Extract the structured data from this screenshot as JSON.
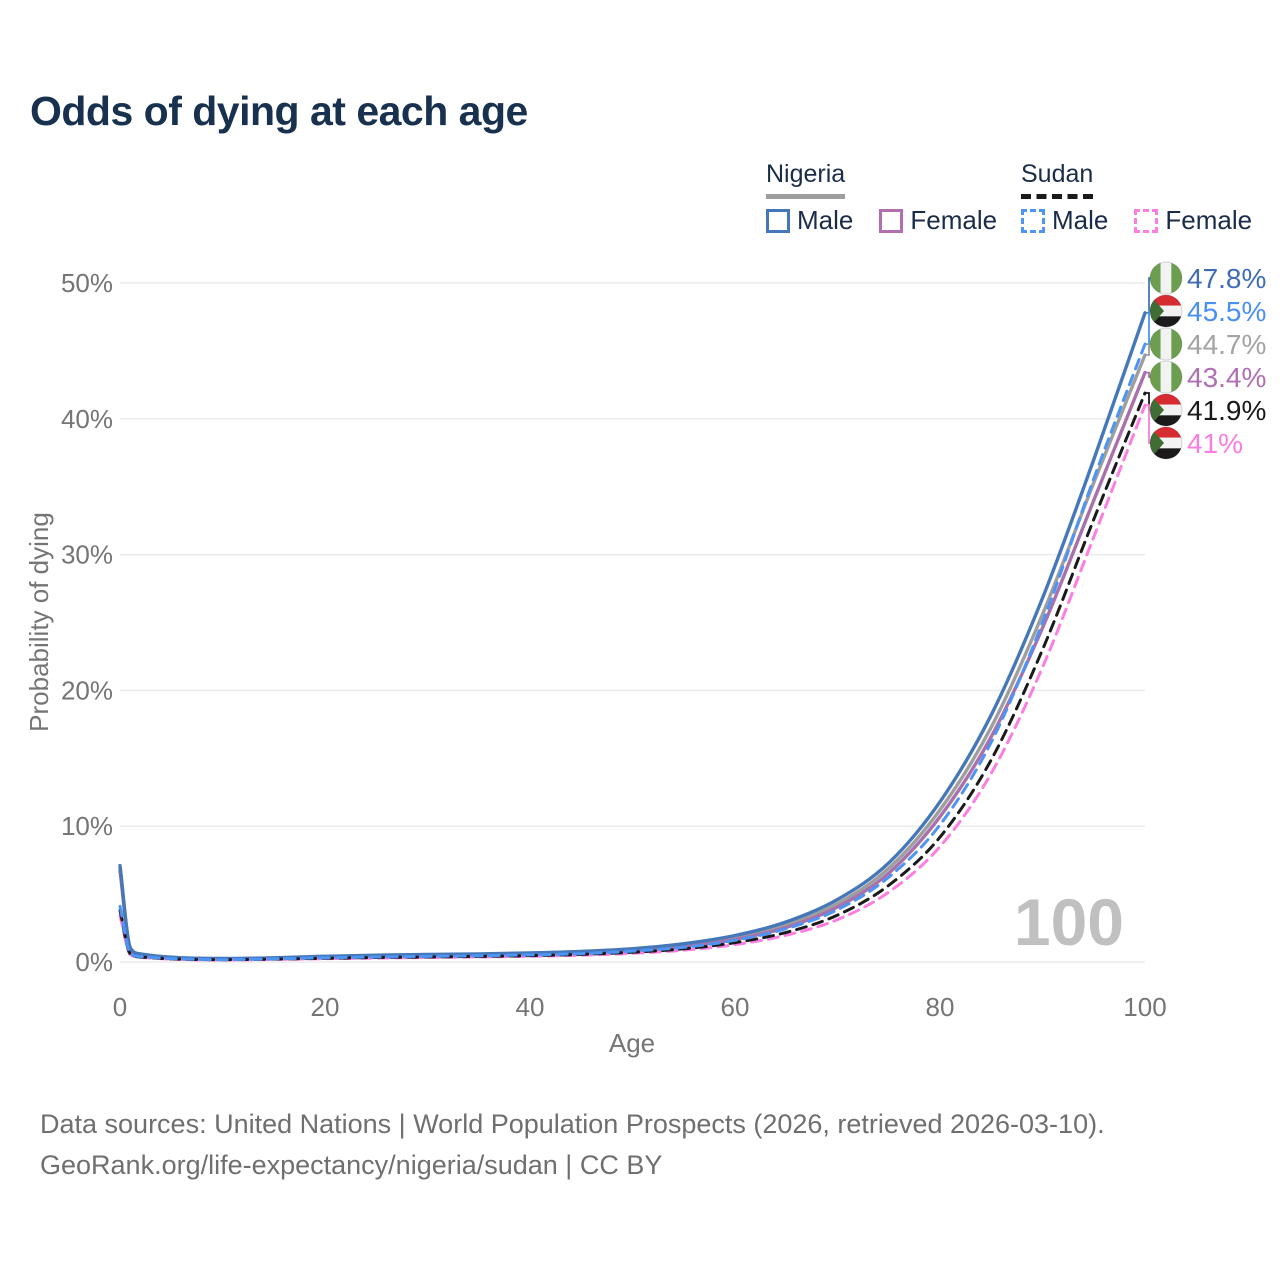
{
  "header": {
    "title": "Odds of dying at each age"
  },
  "legend": {
    "groups": [
      {
        "label": "Nigeria",
        "style": "solid",
        "underline_color": "#9e9e9e",
        "items": [
          {
            "label": "Male",
            "color": "#4678b9"
          },
          {
            "label": "Female",
            "color": "#b070b0"
          }
        ]
      },
      {
        "label": "Sudan",
        "style": "dashed",
        "underline_color": "#1a1a1a",
        "items": [
          {
            "label": "Male",
            "color": "#4d94f5"
          },
          {
            "label": "Female",
            "color": "#fb7ee0"
          }
        ]
      }
    ]
  },
  "chart_data": {
    "type": "line",
    "title": "Odds of dying at each age",
    "xlabel": "Age",
    "ylabel": "Probability of dying",
    "xlim": [
      0,
      100
    ],
    "ylim": [
      0,
      50
    ],
    "x_ticks": [
      0,
      20,
      40,
      60,
      80,
      100
    ],
    "y_ticks": [
      0,
      10,
      20,
      30,
      40,
      50
    ],
    "y_tick_suffix": "%",
    "grid": "horizontal",
    "grid_color": "#ebebeb",
    "tick_color": "#757575",
    "watermark": "100",
    "watermark_color": "#c0c0c0",
    "x": [
      0,
      1,
      2,
      5,
      10,
      15,
      20,
      25,
      30,
      35,
      40,
      45,
      50,
      55,
      60,
      65,
      70,
      75,
      80,
      85,
      90,
      95,
      100
    ],
    "series": [
      {
        "name": "Nigeria Male",
        "country": "nigeria",
        "sex": "male",
        "dash": false,
        "color": "#4678b9",
        "label_color": "#3f6cb5",
        "end_label": "47.8%",
        "values": [
          7.1,
          1.05,
          0.6,
          0.35,
          0.26,
          0.31,
          0.42,
          0.5,
          0.55,
          0.6,
          0.67,
          0.78,
          0.98,
          1.35,
          1.95,
          2.95,
          4.6,
          7.3,
          11.8,
          18.2,
          26.8,
          37.0,
          47.8
        ]
      },
      {
        "name": "Sudan Male",
        "country": "sudan",
        "sex": "male",
        "dash": true,
        "color": "#4d94f5",
        "label_color": "#4a90f0",
        "end_label": "45.5%",
        "values": [
          4.1,
          0.65,
          0.4,
          0.25,
          0.18,
          0.23,
          0.31,
          0.37,
          0.41,
          0.46,
          0.52,
          0.62,
          0.8,
          1.08,
          1.6,
          2.45,
          3.85,
          6.25,
          10.1,
          16.2,
          25.0,
          35.6,
          45.5
        ]
      },
      {
        "name": "Nigeria",
        "country": "nigeria",
        "sex": "all",
        "dash": false,
        "color": "#9e9e9e",
        "label_color": "#a3a3a3",
        "end_label": "44.7%",
        "values": [
          6.9,
          1.0,
          0.56,
          0.33,
          0.24,
          0.29,
          0.38,
          0.46,
          0.51,
          0.56,
          0.62,
          0.72,
          0.9,
          1.24,
          1.8,
          2.74,
          4.3,
          6.9,
          11.2,
          17.3,
          25.6,
          35.3,
          44.7
        ]
      },
      {
        "name": "Nigeria Female",
        "country": "nigeria",
        "sex": "female",
        "dash": false,
        "color": "#a871ab",
        "label_color": "#b06fb3",
        "end_label": "43.4%",
        "values": [
          6.7,
          0.95,
          0.52,
          0.31,
          0.22,
          0.27,
          0.34,
          0.42,
          0.47,
          0.52,
          0.58,
          0.67,
          0.83,
          1.14,
          1.66,
          2.55,
          4.05,
          6.55,
          10.7,
          16.6,
          24.6,
          34.0,
          43.4
        ]
      },
      {
        "name": "Sudan",
        "country": "sudan",
        "sex": "all",
        "dash": true,
        "color": "#1a1a1a",
        "label_color": "#1a1a1a",
        "end_label": "41.9%",
        "values": [
          3.8,
          0.6,
          0.37,
          0.23,
          0.17,
          0.21,
          0.27,
          0.33,
          0.37,
          0.41,
          0.47,
          0.56,
          0.72,
          0.97,
          1.43,
          2.18,
          3.45,
          5.65,
          9.2,
          14.9,
          23.0,
          32.6,
          41.9
        ]
      },
      {
        "name": "Sudan Female",
        "country": "sudan",
        "sex": "female",
        "dash": true,
        "color": "#fb7ee0",
        "label_color": "#fb7ce3",
        "end_label": "41%",
        "values": [
          3.4,
          0.55,
          0.34,
          0.21,
          0.15,
          0.19,
          0.24,
          0.29,
          0.33,
          0.37,
          0.42,
          0.5,
          0.64,
          0.87,
          1.28,
          1.97,
          3.12,
          5.15,
          8.5,
          13.9,
          21.7,
          31.3,
          41.0
        ]
      }
    ]
  },
  "flags": {
    "nigeria_green": "#6b9e4e",
    "flag_white": "#f2f2f2",
    "sudan_red": "#d52b31",
    "sudan_black": "#1a1a1a",
    "sudan_green": "#3f6d34"
  },
  "footer": {
    "line1": "Data sources: United Nations | World Population Prospects (2026, retrieved 2026-03-10).",
    "line2": "GeoRank.org/life-expectancy/nigeria/sudan | CC BY"
  }
}
